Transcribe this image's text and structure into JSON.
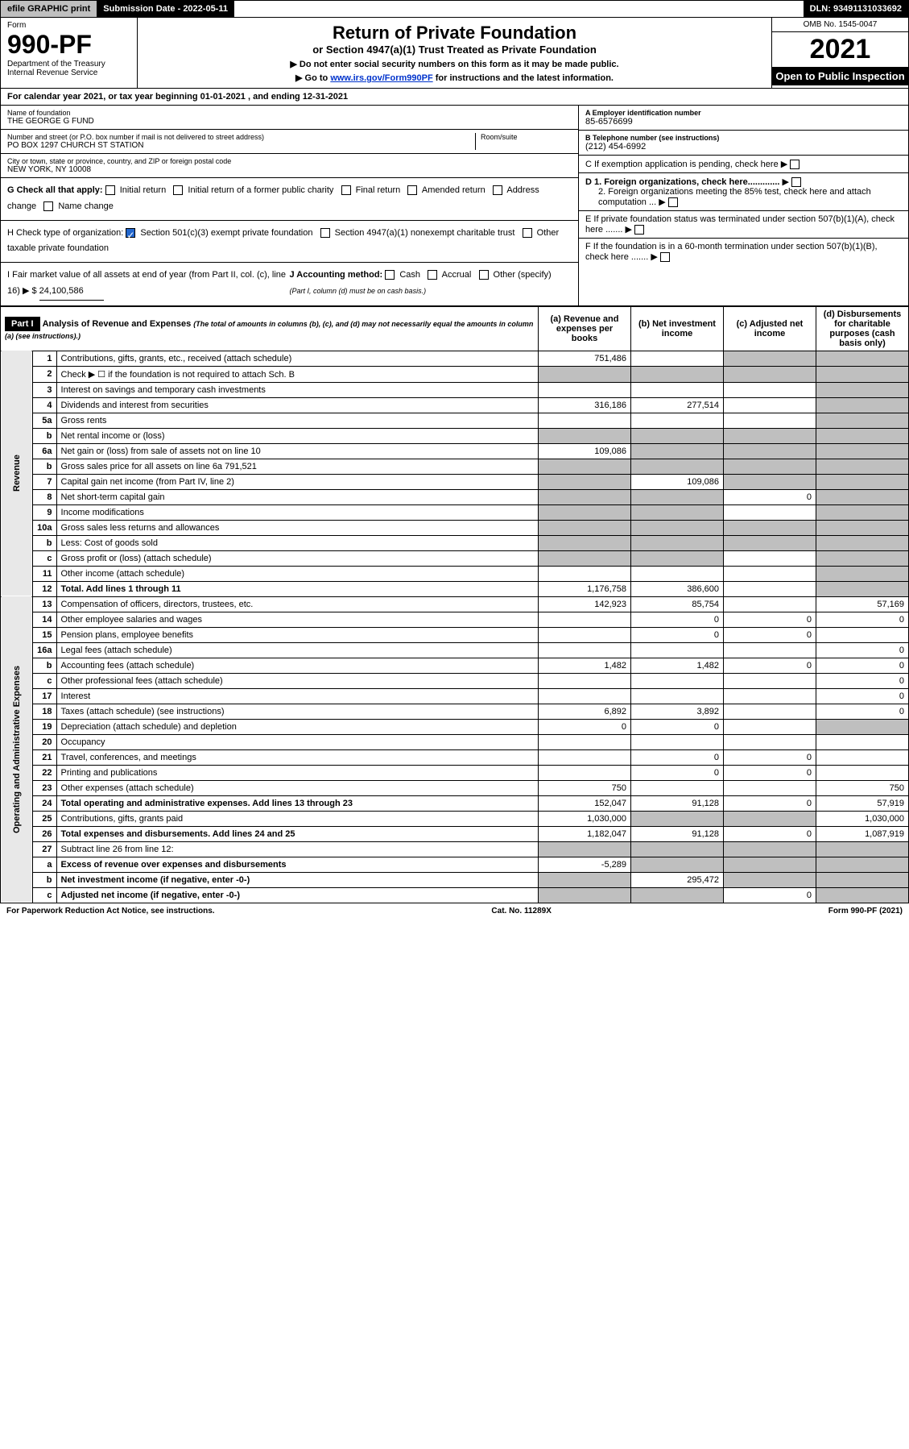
{
  "topbar": {
    "efile": "efile GRAPHIC print",
    "submission_label": "Submission Date - 2022-05-11",
    "dln": "DLN: 93491131033692"
  },
  "formhead": {
    "form_label": "Form",
    "form_number": "990-PF",
    "dept": "Department of the Treasury\nInternal Revenue Service",
    "title": "Return of Private Foundation",
    "subtitle": "or Section 4947(a)(1) Trust Treated as Private Foundation",
    "note1": "▶ Do not enter social security numbers on this form as it may be made public.",
    "note2_pre": "▶ Go to ",
    "note2_link": "www.irs.gov/Form990PF",
    "note2_post": " for instructions and the latest information.",
    "omb": "OMB No. 1545-0047",
    "year": "2021",
    "open": "Open to Public Inspection"
  },
  "yearline": "For calendar year 2021, or tax year beginning 01-01-2021             , and ending 12-31-2021",
  "id": {
    "name_lbl": "Name of foundation",
    "name_val": "THE GEORGE G FUND",
    "addr_lbl": "Number and street (or P.O. box number if mail is not delivered to street address)",
    "addr_val": "PO BOX 1297 CHURCH ST STATION",
    "room_lbl": "Room/suite",
    "city_lbl": "City or town, state or province, country, and ZIP or foreign postal code",
    "city_val": "NEW YORK, NY  10008",
    "ein_lbl": "A Employer identification number",
    "ein_val": "85-6576699",
    "tel_lbl": "B Telephone number (see instructions)",
    "tel_val": "(212) 454-6992",
    "c_lbl": "C If exemption application is pending, check here",
    "d1": "D 1. Foreign organizations, check here.............",
    "d2": "2. Foreign organizations meeting the 85% test, check here and attach computation ...",
    "e": "E  If private foundation status was terminated under section 507(b)(1)(A), check here .......",
    "f": "F  If the foundation is in a 60-month termination under section 507(b)(1)(B), check here .......",
    "g_lbl": "G Check all that apply:",
    "g_opts": [
      "Initial return",
      "Initial return of a former public charity",
      "Final return",
      "Amended return",
      "Address change",
      "Name change"
    ],
    "h_lbl": "H Check type of organization:",
    "h_opts": [
      "Section 501(c)(3) exempt private foundation",
      "Section 4947(a)(1) nonexempt charitable trust",
      "Other taxable private foundation"
    ],
    "i_lbl": "I Fair market value of all assets at end of year (from Part II, col. (c), line 16) ▶ $",
    "i_val": "24,100,586",
    "j_lbl": "J Accounting method:",
    "j_opts": [
      "Cash",
      "Accrual",
      "Other (specify)"
    ],
    "j_note": "(Part I, column (d) must be on cash basis.)"
  },
  "part1": {
    "label": "Part I",
    "title": "Analysis of Revenue and Expenses",
    "title_note": "(The total of amounts in columns (b), (c), and (d) may not necessarily equal the amounts in column (a) (see instructions).)",
    "col_a": "(a) Revenue and expenses per books",
    "col_b": "(b) Net investment income",
    "col_c": "(c) Adjusted net income",
    "col_d": "(d) Disbursements for charitable purposes (cash basis only)",
    "side_rev": "Revenue",
    "side_exp": "Operating and Administrative Expenses"
  },
  "rows": [
    {
      "n": "1",
      "d": "Contributions, gifts, grants, etc., received (attach schedule)",
      "a": "751,486",
      "b": "",
      "c": "g",
      "dd": "g"
    },
    {
      "n": "2",
      "d": "Check ▶ ☐ if the foundation is not required to attach Sch. B",
      "a": "g",
      "b": "g",
      "c": "g",
      "dd": "g"
    },
    {
      "n": "3",
      "d": "Interest on savings and temporary cash investments",
      "a": "",
      "b": "",
      "c": "",
      "dd": "g"
    },
    {
      "n": "4",
      "d": "Dividends and interest from securities",
      "a": "316,186",
      "b": "277,514",
      "c": "",
      "dd": "g"
    },
    {
      "n": "5a",
      "d": "Gross rents",
      "a": "",
      "b": "",
      "c": "",
      "dd": "g"
    },
    {
      "n": "b",
      "d": "Net rental income or (loss)",
      "a": "g",
      "b": "g",
      "c": "g",
      "dd": "g",
      "inline": true
    },
    {
      "n": "6a",
      "d": "Net gain or (loss) from sale of assets not on line 10",
      "a": "109,086",
      "b": "g",
      "c": "g",
      "dd": "g"
    },
    {
      "n": "b",
      "d": "Gross sales price for all assets on line 6a               791,521",
      "a": "g",
      "b": "g",
      "c": "g",
      "dd": "g"
    },
    {
      "n": "7",
      "d": "Capital gain net income (from Part IV, line 2)",
      "a": "g",
      "b": "109,086",
      "c": "g",
      "dd": "g"
    },
    {
      "n": "8",
      "d": "Net short-term capital gain",
      "a": "g",
      "b": "g",
      "c": "0",
      "dd": "g"
    },
    {
      "n": "9",
      "d": "Income modifications",
      "a": "g",
      "b": "g",
      "c": "",
      "dd": "g"
    },
    {
      "n": "10a",
      "d": "Gross sales less returns and allowances",
      "a": "g",
      "b": "g",
      "c": "g",
      "dd": "g",
      "inline": true
    },
    {
      "n": "b",
      "d": "Less: Cost of goods sold",
      "a": "g",
      "b": "g",
      "c": "g",
      "dd": "g",
      "inline": true
    },
    {
      "n": "c",
      "d": "Gross profit or (loss) (attach schedule)",
      "a": "g",
      "b": "g",
      "c": "",
      "dd": "g"
    },
    {
      "n": "11",
      "d": "Other income (attach schedule)",
      "a": "",
      "b": "",
      "c": "",
      "dd": "g"
    },
    {
      "n": "12",
      "d": "Total. Add lines 1 through 11",
      "a": "1,176,758",
      "b": "386,600",
      "c": "",
      "dd": "g",
      "bold": true
    },
    {
      "n": "13",
      "d": "Compensation of officers, directors, trustees, etc.",
      "a": "142,923",
      "b": "85,754",
      "c": "",
      "dd": "57,169"
    },
    {
      "n": "14",
      "d": "Other employee salaries and wages",
      "a": "",
      "b": "0",
      "c": "0",
      "dd": "0"
    },
    {
      "n": "15",
      "d": "Pension plans, employee benefits",
      "a": "",
      "b": "0",
      "c": "0",
      "dd": ""
    },
    {
      "n": "16a",
      "d": "Legal fees (attach schedule)",
      "a": "",
      "b": "",
      "c": "",
      "dd": "0"
    },
    {
      "n": "b",
      "d": "Accounting fees (attach schedule)",
      "a": "1,482",
      "b": "1,482",
      "c": "0",
      "dd": "0"
    },
    {
      "n": "c",
      "d": "Other professional fees (attach schedule)",
      "a": "",
      "b": "",
      "c": "",
      "dd": "0"
    },
    {
      "n": "17",
      "d": "Interest",
      "a": "",
      "b": "",
      "c": "",
      "dd": "0"
    },
    {
      "n": "18",
      "d": "Taxes (attach schedule) (see instructions)",
      "a": "6,892",
      "b": "3,892",
      "c": "",
      "dd": "0"
    },
    {
      "n": "19",
      "d": "Depreciation (attach schedule) and depletion",
      "a": "0",
      "b": "0",
      "c": "",
      "dd": "g"
    },
    {
      "n": "20",
      "d": "Occupancy",
      "a": "",
      "b": "",
      "c": "",
      "dd": ""
    },
    {
      "n": "21",
      "d": "Travel, conferences, and meetings",
      "a": "",
      "b": "0",
      "c": "0",
      "dd": ""
    },
    {
      "n": "22",
      "d": "Printing and publications",
      "a": "",
      "b": "0",
      "c": "0",
      "dd": ""
    },
    {
      "n": "23",
      "d": "Other expenses (attach schedule)",
      "a": "750",
      "b": "",
      "c": "",
      "dd": "750"
    },
    {
      "n": "24",
      "d": "Total operating and administrative expenses. Add lines 13 through 23",
      "a": "152,047",
      "b": "91,128",
      "c": "0",
      "dd": "57,919",
      "bold": true
    },
    {
      "n": "25",
      "d": "Contributions, gifts, grants paid",
      "a": "1,030,000",
      "b": "g",
      "c": "g",
      "dd": "1,030,000"
    },
    {
      "n": "26",
      "d": "Total expenses and disbursements. Add lines 24 and 25",
      "a": "1,182,047",
      "b": "91,128",
      "c": "0",
      "dd": "1,087,919",
      "bold": true
    },
    {
      "n": "27",
      "d": "Subtract line 26 from line 12:",
      "a": "g",
      "b": "g",
      "c": "g",
      "dd": "g"
    },
    {
      "n": "a",
      "d": "Excess of revenue over expenses and disbursements",
      "a": "-5,289",
      "b": "g",
      "c": "g",
      "dd": "g",
      "bold": true
    },
    {
      "n": "b",
      "d": "Net investment income (if negative, enter -0-)",
      "a": "g",
      "b": "295,472",
      "c": "g",
      "dd": "g",
      "bold": true
    },
    {
      "n": "c",
      "d": "Adjusted net income (if negative, enter -0-)",
      "a": "g",
      "b": "g",
      "c": "0",
      "dd": "g",
      "bold": true
    }
  ],
  "foot": {
    "l": "For Paperwork Reduction Act Notice, see instructions.",
    "m": "Cat. No. 11289X",
    "r": "Form 990-PF (2021)"
  }
}
